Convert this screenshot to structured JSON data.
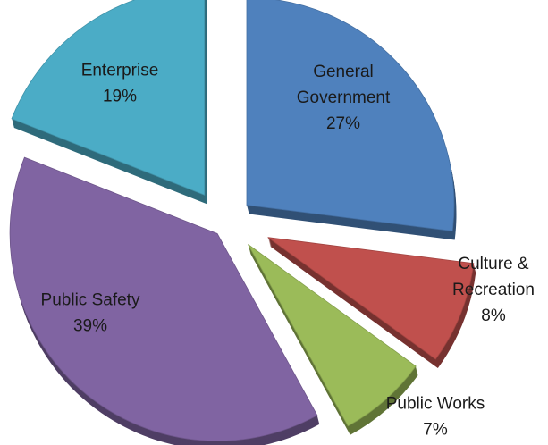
{
  "chart_data": {
    "type": "pie",
    "style": "3d-exploded",
    "legend": "none",
    "slices": [
      {
        "name": "General Government",
        "label_lines": [
          "General",
          "Government"
        ],
        "value": 27,
        "value_label": "27%",
        "color": "#4f81bd",
        "label_inside": true
      },
      {
        "name": "Culture & Recreation",
        "label_lines": [
          "Culture &",
          "Recreation"
        ],
        "value": 8,
        "value_label": "8%",
        "color": "#c0504d",
        "label_inside": false
      },
      {
        "name": "Public Works",
        "label_lines": [
          "Public Works"
        ],
        "value": 7,
        "value_label": "7%",
        "color": "#9bbb59",
        "label_inside": false
      },
      {
        "name": "Public Safety",
        "label_lines": [
          "Public Safety"
        ],
        "value": 39,
        "value_label": "39%",
        "color": "#8064a2",
        "label_inside": true
      },
      {
        "name": "Enterprise",
        "label_lines": [
          "Enterprise"
        ],
        "value": 19,
        "value_label": "19%",
        "color": "#4bacc6",
        "label_inside": true
      }
    ]
  }
}
